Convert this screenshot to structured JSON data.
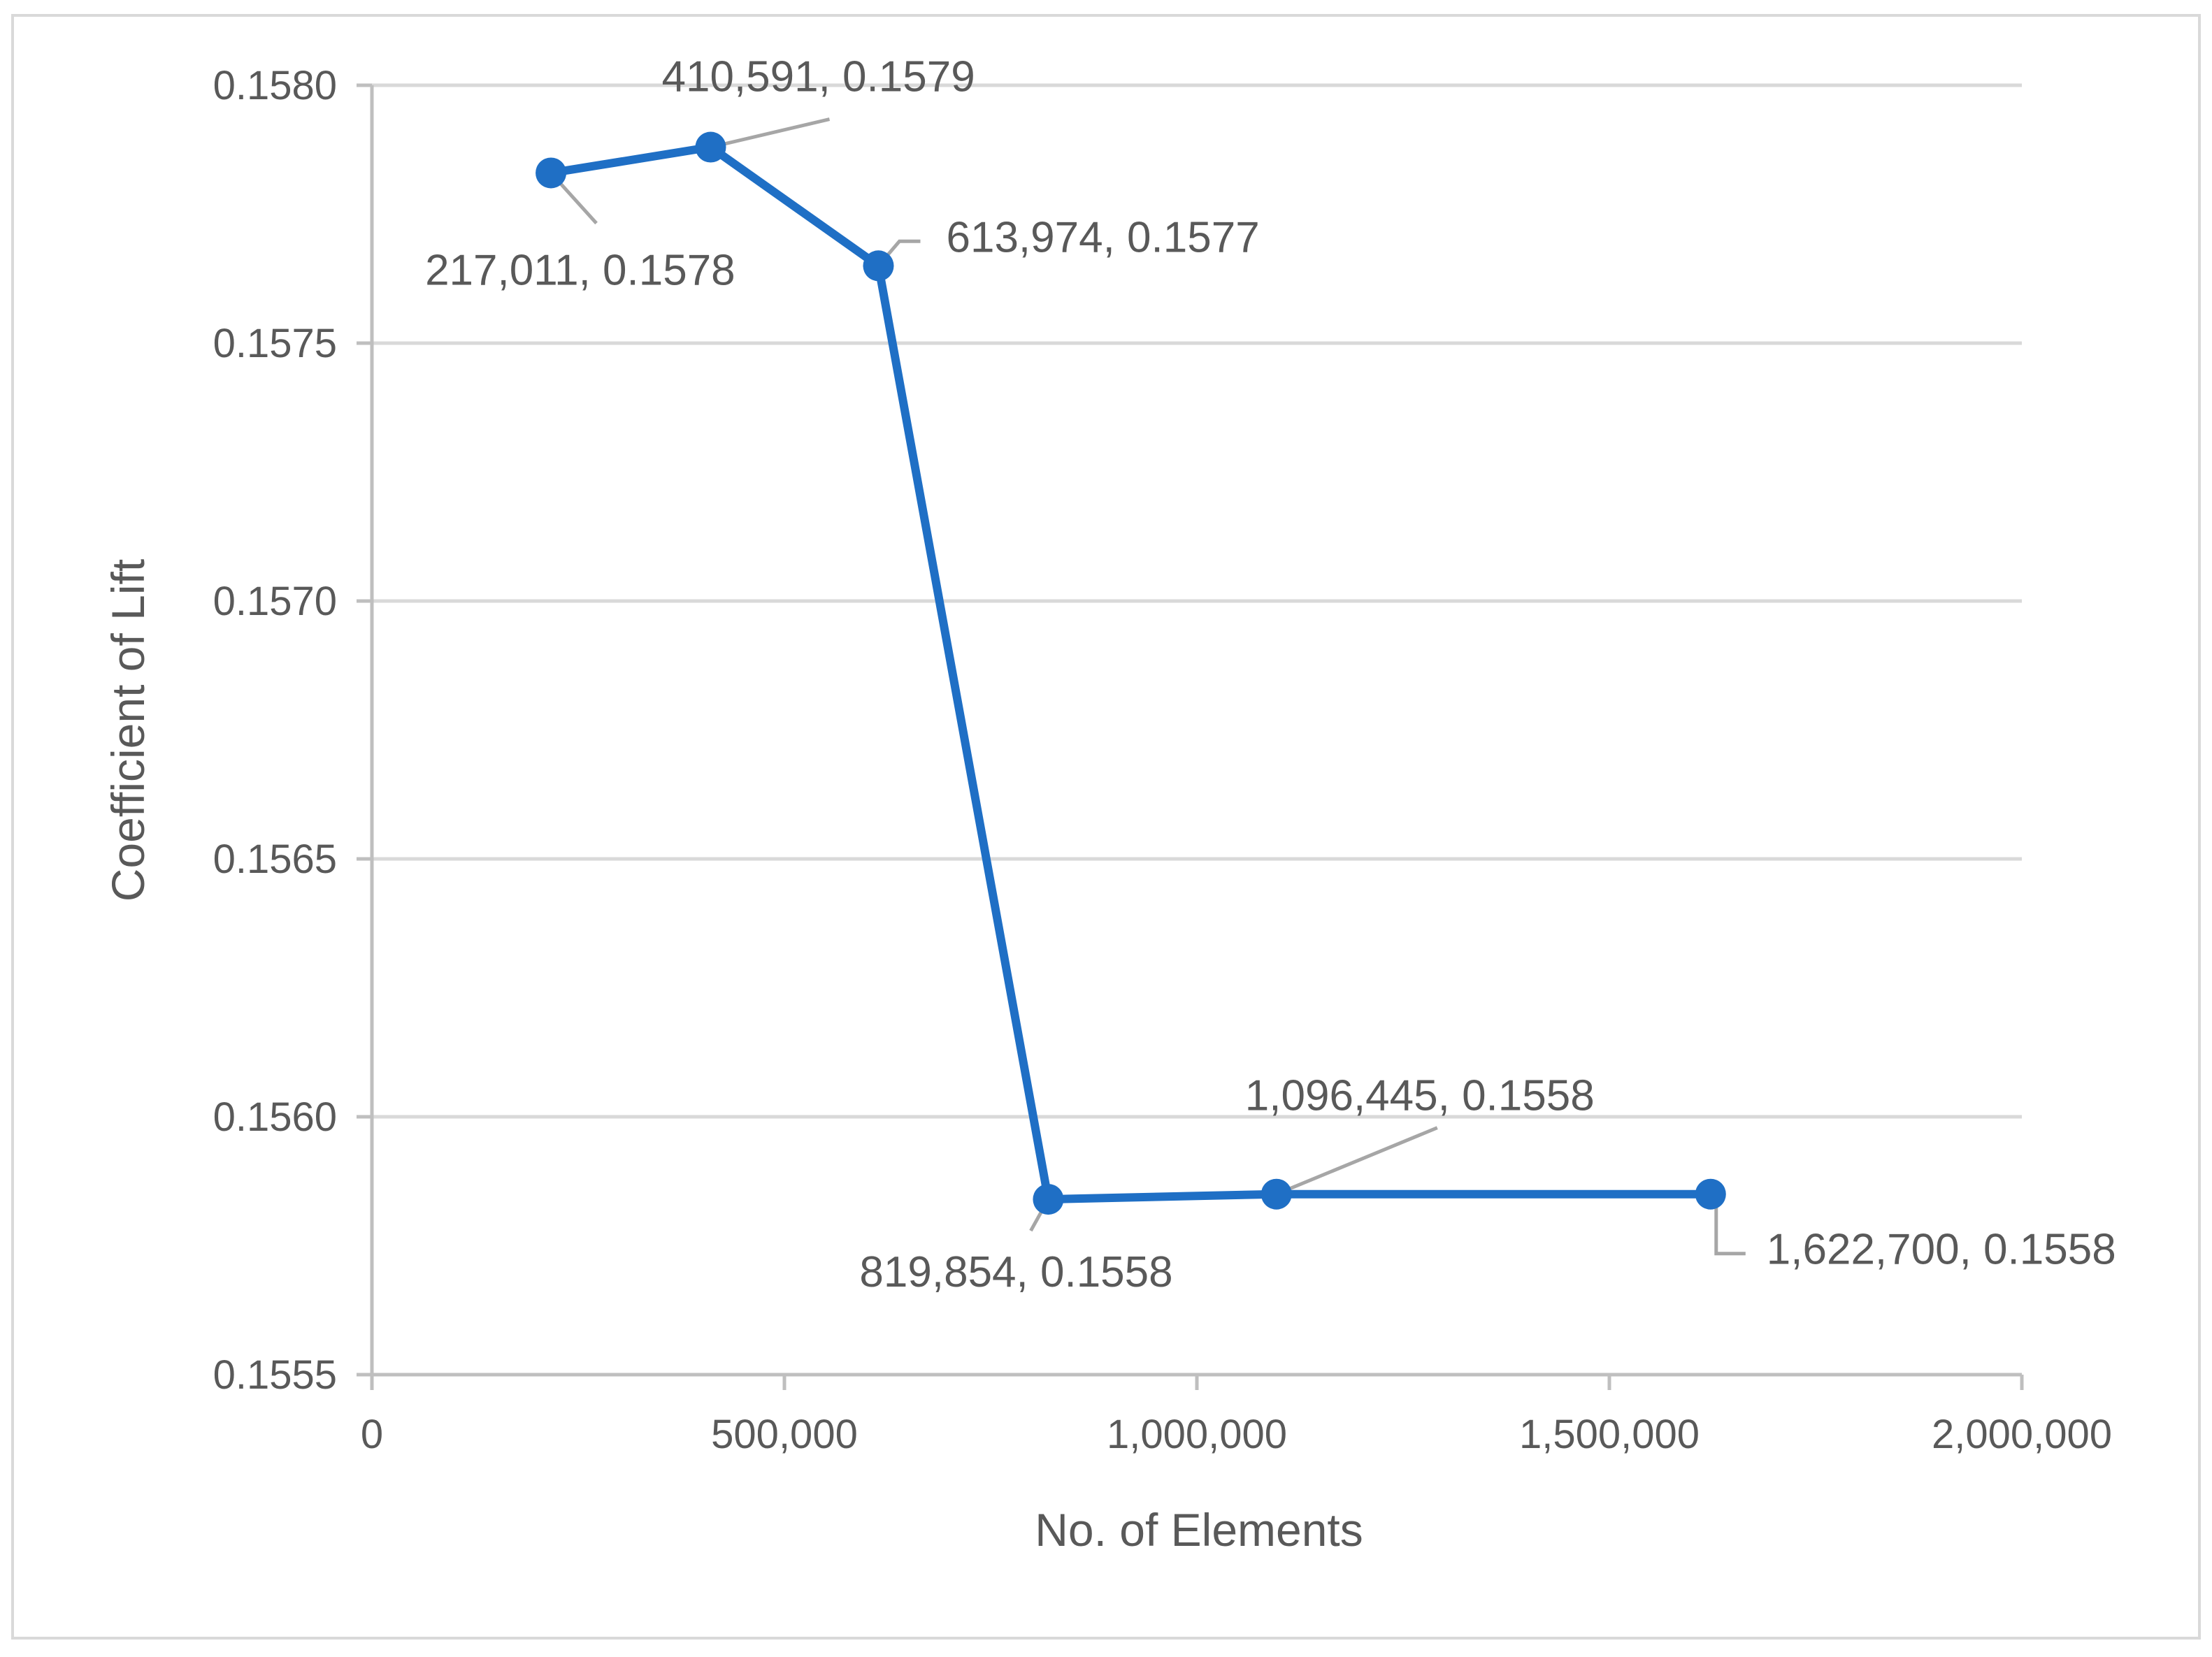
{
  "chart_data": {
    "type": "line",
    "title": "",
    "xlabel": "No. of Elements",
    "ylabel": "Coefficient of Lift",
    "xlim": [
      0,
      2000000
    ],
    "ylim": [
      0.1555,
      0.158
    ],
    "x_ticks": [
      0,
      500000,
      1000000,
      1500000,
      2000000
    ],
    "x_tick_labels": [
      "0",
      "500,000",
      "1,000,000",
      "1,500,000",
      "2,000,000"
    ],
    "y_ticks": [
      0.1555,
      0.156,
      0.1565,
      0.157,
      0.1575,
      0.158
    ],
    "y_tick_labels": [
      "0.1555",
      "0.1560",
      "0.1565",
      "0.1570",
      "0.1575",
      "0.1580"
    ],
    "grid": "horizontal",
    "legend": "none",
    "series": [
      {
        "x": [
          217011,
          410591,
          613974,
          819854,
          1096445,
          1622700
        ],
        "y": [
          0.15783,
          0.15788,
          0.15765,
          0.15584,
          0.15585,
          0.15585
        ],
        "color": "#1f6fc5"
      }
    ],
    "data_labels": [
      "217,011, 0.1578",
      "410,591, 0.1579",
      "613,974, 0.1577",
      "819,854, 0.1558",
      "1,096,445, 0.1558",
      "1,622,700, 0.1558"
    ],
    "colors": {
      "line": "#1f6fc5",
      "grid": "#d9d9d9",
      "axis": "#bfbfbf",
      "text": "#595959",
      "leader": "#a6a6a6",
      "frame": "#d9d9d9"
    }
  }
}
